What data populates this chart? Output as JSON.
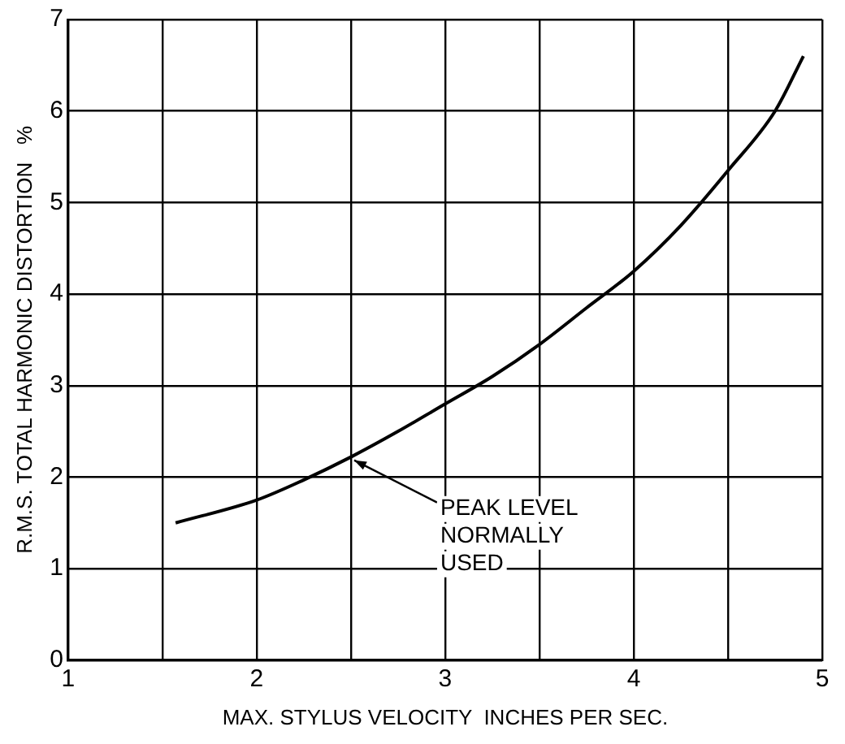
{
  "chart_data": {
    "type": "line",
    "xlabel": "MAX. STYLUS VELOCITY  INCHES PER SEC.",
    "ylabel": "R.M.S. TOTAL HARMONIC DISTORTION   %",
    "x": [
      1.57,
      2,
      2.25,
      2.5,
      2.75,
      3,
      3.25,
      3.5,
      3.75,
      4,
      4.25,
      4.5,
      4.75,
      4.9
    ],
    "series": [
      {
        "color": "#000000",
        "values": [
          1.5,
          1.75,
          1.97,
          2.22,
          2.5,
          2.8,
          3.1,
          3.45,
          3.85,
          4.25,
          4.75,
          5.35,
          6.0,
          6.6
        ]
      }
    ],
    "xlim": [
      1,
      5
    ],
    "xticks": [
      1,
      {
        "value": 1.5,
        "label": null
      },
      2,
      {
        "value": 2.5,
        "label": null
      },
      3,
      {
        "value": 3.5,
        "label": null
      },
      4,
      {
        "value": 4.5,
        "label": null
      },
      5
    ],
    "ylim": [
      0,
      7
    ],
    "yticks": [
      0,
      1,
      2,
      3,
      4,
      5,
      6,
      7
    ],
    "grid": true,
    "legend": false,
    "marker": "none",
    "line_style": "solid",
    "annotations": [
      {
        "text": "PEAK LEVEL NORMALLY USED",
        "x": 2.5,
        "y": 2.22
      }
    ]
  }
}
